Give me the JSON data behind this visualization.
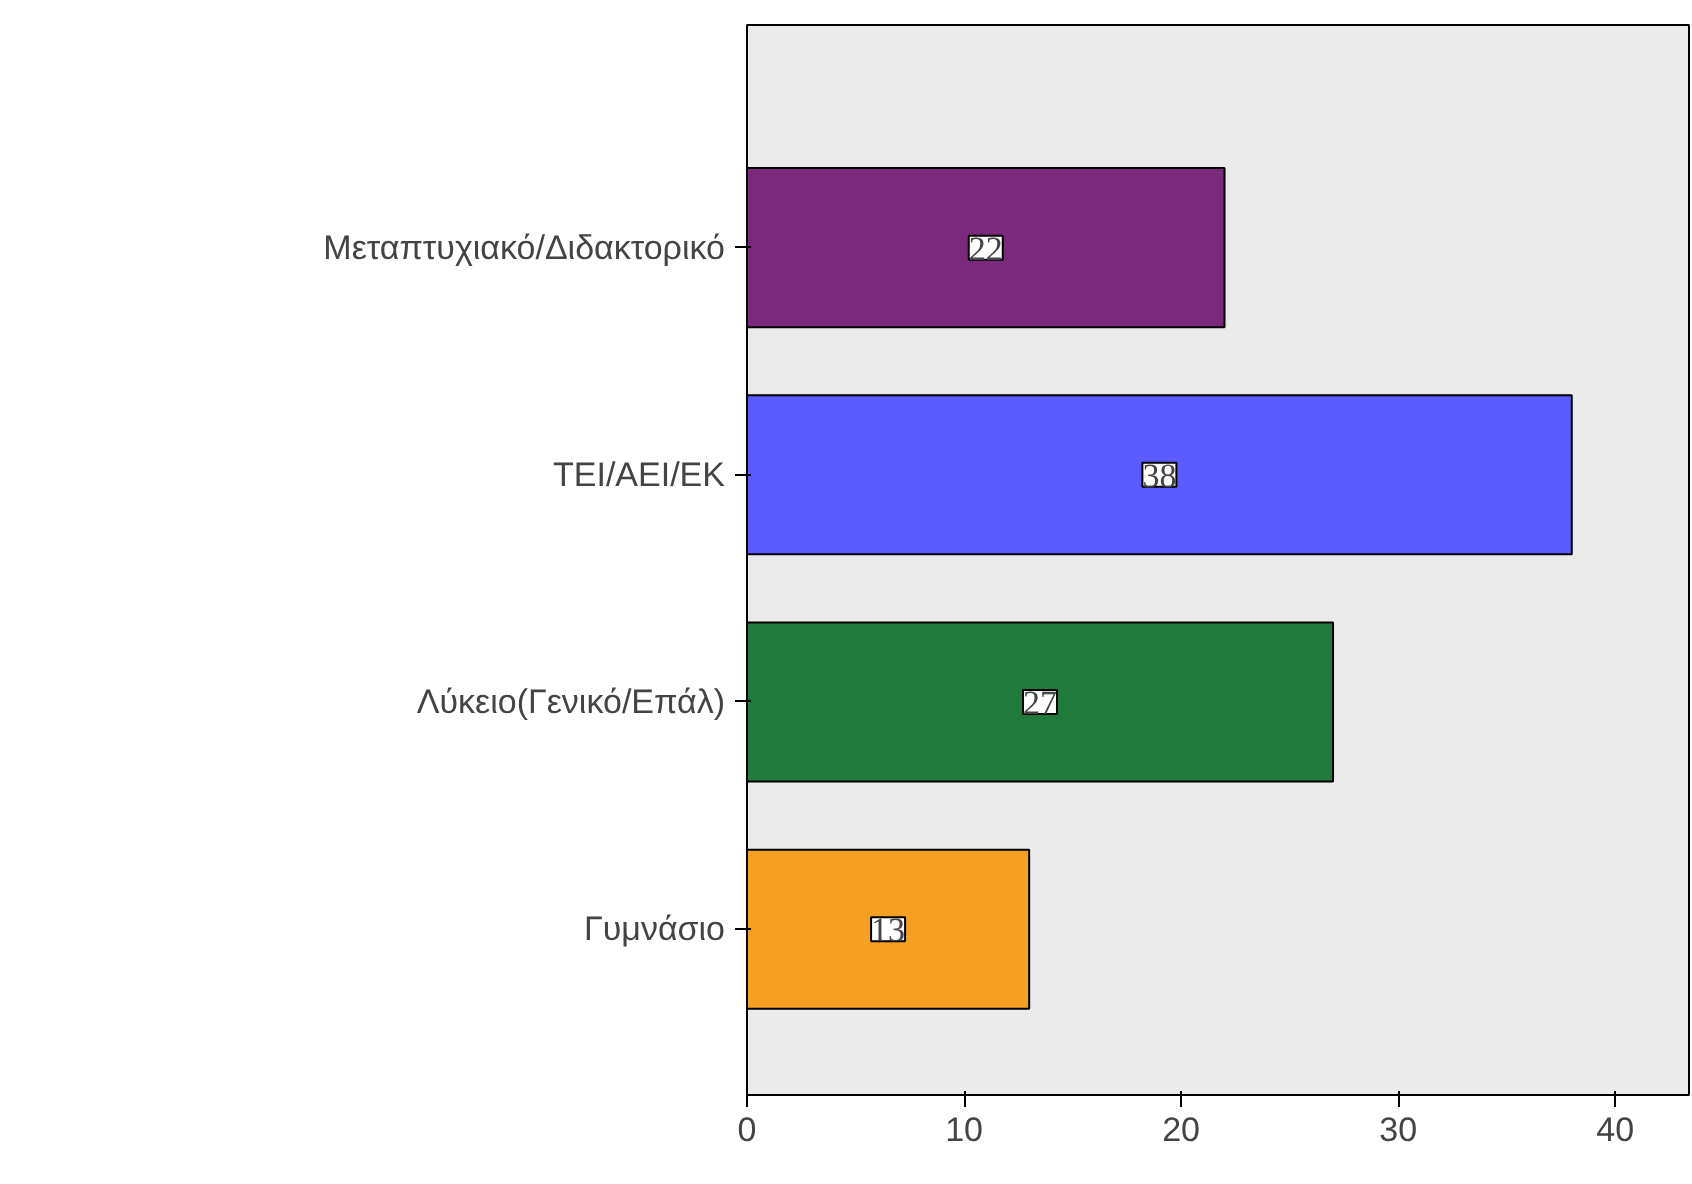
{
  "chart_data": {
    "type": "bar",
    "orientation": "horizontal",
    "categories": [
      "Μεταπτυχιακό/Διδακτορικό",
      "ΤΕΙ/ΑΕΙ/ΕΚ",
      "Λύκειο(Γενικό/Επάλ)",
      "Γυμνάσιο"
    ],
    "values": [
      22,
      38,
      27,
      13
    ],
    "colors": [
      "#7b2a7b",
      "#5b5bff",
      "#1f7a3c",
      "#f5a023"
    ],
    "xlim": [
      0,
      43.4
    ],
    "xticks": [
      0,
      10,
      20,
      30,
      40
    ],
    "data_labels": true,
    "grid": false
  }
}
